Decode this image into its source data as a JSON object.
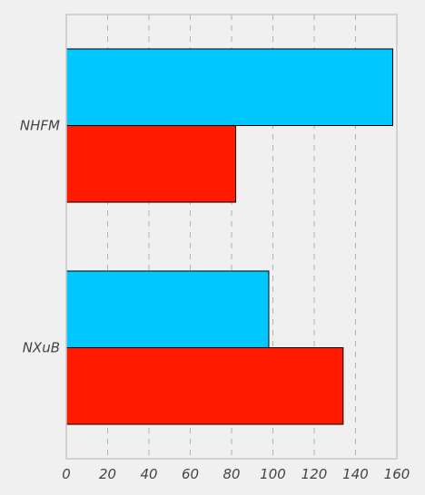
{
  "chart_data": {
    "type": "bar",
    "orientation": "horizontal",
    "categories": [
      "NHFM",
      "NXuB"
    ],
    "series": [
      {
        "values": [
          158,
          98
        ],
        "color": "#00c8ff"
      },
      {
        "values": [
          82,
          134
        ],
        "color": "#ff1a00"
      }
    ],
    "xlim": [
      0,
      160
    ],
    "xticks": [
      "0",
      "20",
      "40",
      "60",
      "80",
      "100",
      "120",
      "140",
      "160"
    ],
    "grid": true,
    "title": "",
    "xlabel": "",
    "ylabel": ""
  }
}
